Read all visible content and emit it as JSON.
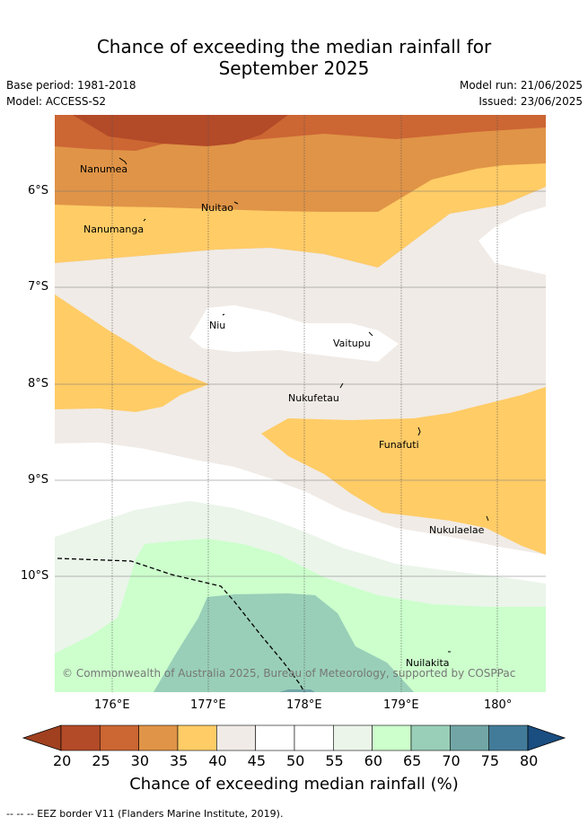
{
  "title_line1": "Chance of exceeding the median rainfall for",
  "title_line2": "September 2025",
  "base_period": "Base period: 1981-2018",
  "model": "Model: ACCESS-S2",
  "model_run": "Model run: 21/06/2025",
  "issued": "Issued: 23/06/2025",
  "copyright": "© Commonwealth of Australia 2025, Bureau of Meteorology, supported by COSPPac",
  "lat_labels": [
    "6°S",
    "7°S",
    "8°S",
    "9°S",
    "10°S"
  ],
  "lon_labels": [
    "176°E",
    "177°E",
    "178°E",
    "179°E",
    "180°"
  ],
  "places": [
    "Nanumea",
    "Nuitao",
    "Nanumanga",
    "Niu",
    "Vaitupu",
    "Nukufetau",
    "Funafuti",
    "Nukulaelae",
    "Nuilakita"
  ],
  "colorbar": {
    "ticks": [
      "20",
      "25",
      "30",
      "35",
      "40",
      "45",
      "50",
      "55",
      "60",
      "65",
      "70",
      "75",
      "80"
    ],
    "colors": [
      "#b34a28",
      "#cc6633",
      "#e09447",
      "#ffcc66",
      "#f0ebe6",
      "#ffffff",
      "#ffffff",
      "#ebf5ea",
      "#ccffcc",
      "#99cfb8",
      "#72a6a6",
      "#427b99"
    ],
    "under_color": "#a0401f",
    "over_color": "#1a4d80",
    "label": "Chance of exceeding median rainfall (%)"
  },
  "footnote": "-- -- -- EEZ border V11 (Flanders Marine Institute, 2019)."
}
